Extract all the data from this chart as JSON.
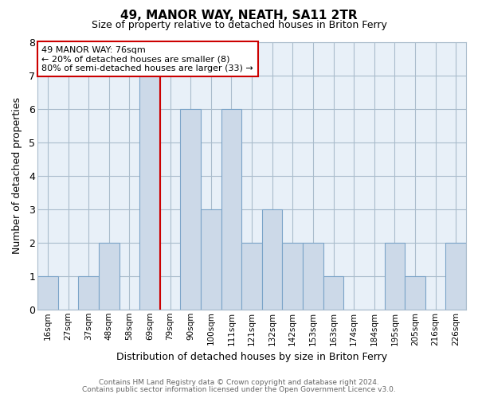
{
  "title": "49, MANOR WAY, NEATH, SA11 2TR",
  "subtitle": "Size of property relative to detached houses in Briton Ferry",
  "xlabel": "Distribution of detached houses by size in Briton Ferry",
  "ylabel": "Number of detached properties",
  "bin_labels": [
    "16sqm",
    "27sqm",
    "37sqm",
    "48sqm",
    "58sqm",
    "69sqm",
    "79sqm",
    "90sqm",
    "100sqm",
    "111sqm",
    "121sqm",
    "132sqm",
    "142sqm",
    "153sqm",
    "163sqm",
    "174sqm",
    "184sqm",
    "195sqm",
    "205sqm",
    "216sqm",
    "226sqm"
  ],
  "bin_counts": [
    1,
    0,
    1,
    2,
    0,
    7,
    0,
    6,
    3,
    6,
    2,
    3,
    2,
    2,
    1,
    0,
    0,
    2,
    1,
    0,
    2
  ],
  "bar_color": "#ccd9e8",
  "bar_edge_color": "#7ba4c8",
  "plot_bg_color": "#e8f0f8",
  "property_line_bin_idx": 6,
  "ylim": [
    0,
    8
  ],
  "yticks": [
    0,
    1,
    2,
    3,
    4,
    5,
    6,
    7,
    8
  ],
  "annotation_title": "49 MANOR WAY: 76sqm",
  "annotation_line1": "← 20% of detached houses are smaller (8)",
  "annotation_line2": "80% of semi-detached houses are larger (33) →",
  "property_line_color": "#cc0000",
  "footnote1": "Contains HM Land Registry data © Crown copyright and database right 2024.",
  "footnote2": "Contains public sector information licensed under the Open Government Licence v3.0.",
  "background_color": "#ffffff",
  "grid_color": "#aabccc",
  "title_fontsize": 11,
  "subtitle_fontsize": 9
}
